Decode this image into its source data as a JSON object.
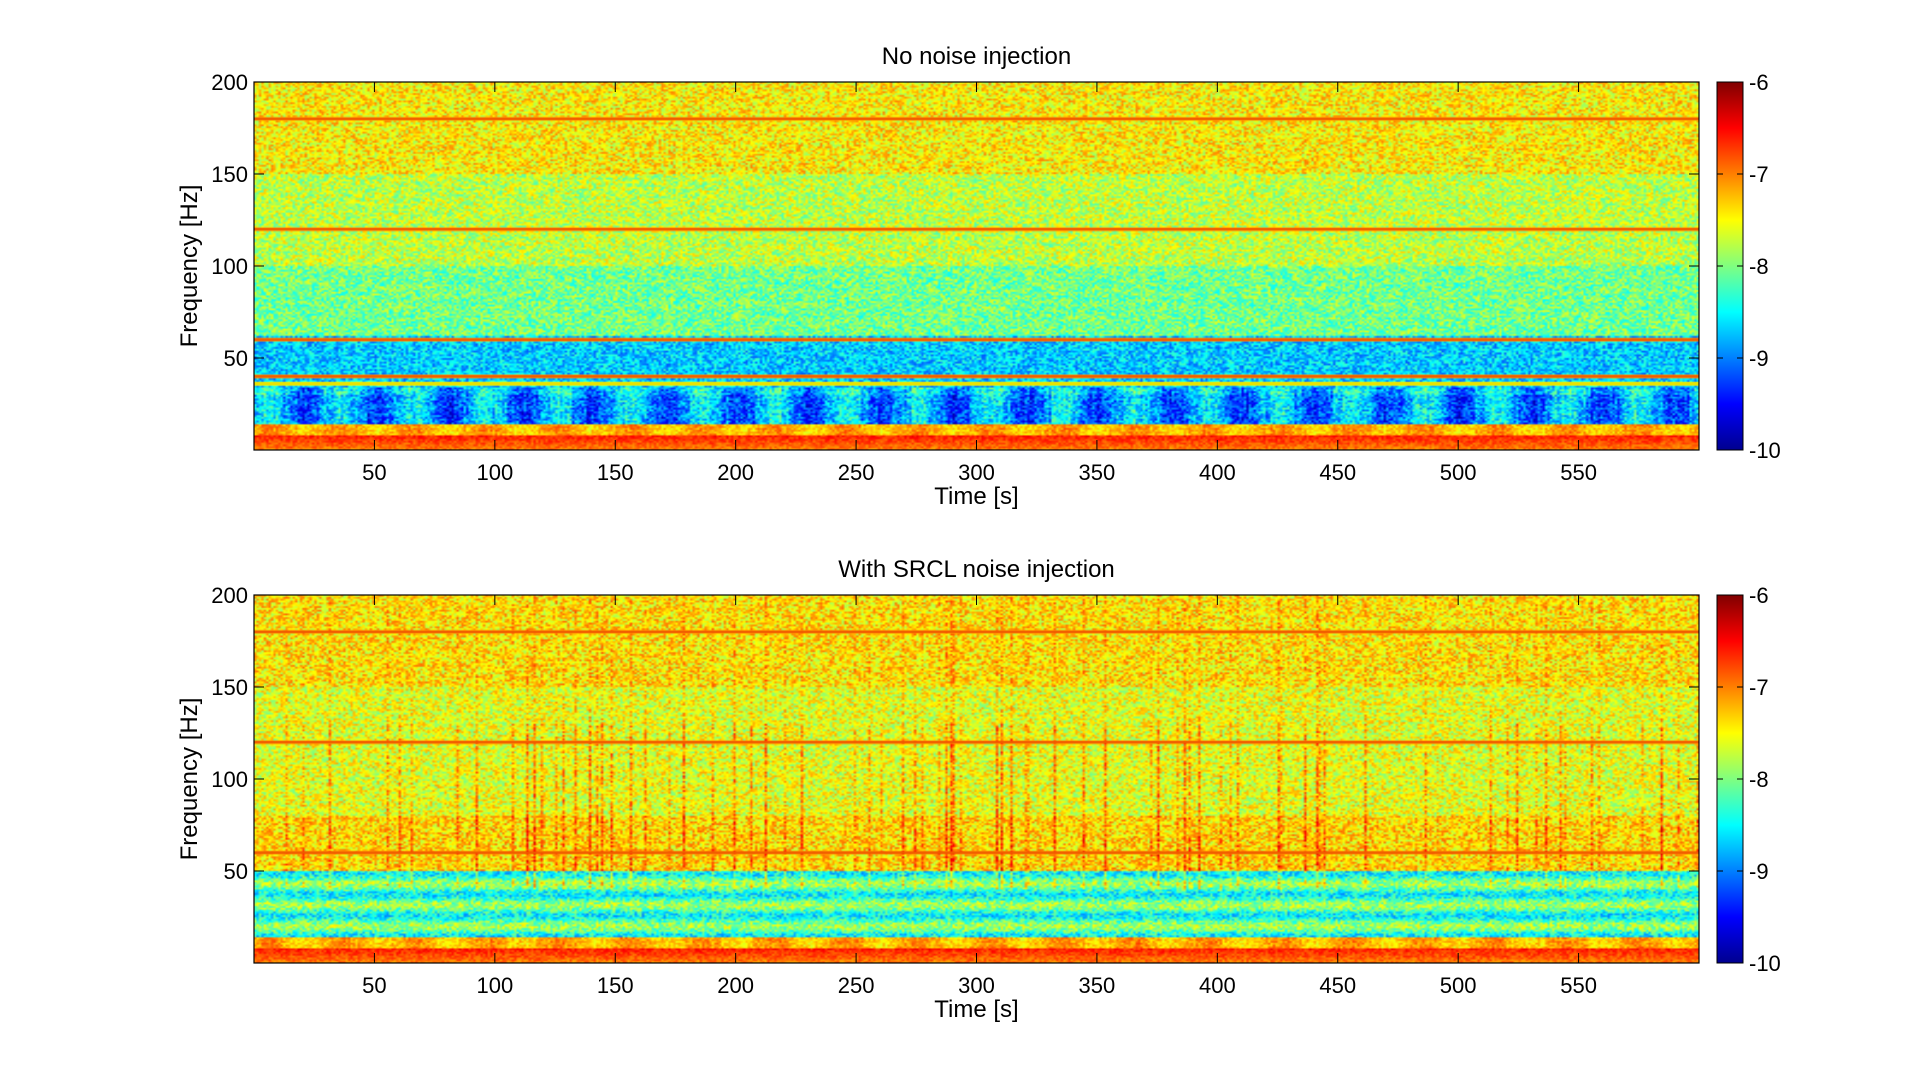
{
  "chart_data": [
    {
      "type": "heatmap",
      "title": "No noise injection",
      "xlabel": "Time [s]",
      "ylabel": "Frequency [Hz]",
      "xlim": [
        0,
        600
      ],
      "ylim": [
        0,
        200
      ],
      "x_ticks": [
        50,
        100,
        150,
        200,
        250,
        300,
        350,
        400,
        450,
        500,
        550
      ],
      "y_ticks": [
        50,
        100,
        150,
        200
      ],
      "colorbar": {
        "range": [
          -10,
          -6
        ],
        "ticks": [
          -6,
          -7,
          -8,
          -9,
          -10
        ],
        "colormap": "jet"
      },
      "lines_hz": [
        180,
        120,
        60,
        40,
        36
      ]
    },
    {
      "type": "heatmap",
      "title": "With SRCL noise injection",
      "xlabel": "Time [s]",
      "ylabel": "Frequency [Hz]",
      "xlim": [
        0,
        600
      ],
      "ylim": [
        0,
        200
      ],
      "x_ticks": [
        50,
        100,
        150,
        200,
        250,
        300,
        350,
        400,
        450,
        500,
        550
      ],
      "y_ticks": [
        50,
        100,
        150,
        200
      ],
      "colorbar": {
        "range": [
          -10,
          -6
        ],
        "ticks": [
          -6,
          -7,
          -8,
          -9,
          -10
        ],
        "colormap": "jet"
      },
      "lines_hz": [
        180,
        120,
        60
      ]
    }
  ]
}
